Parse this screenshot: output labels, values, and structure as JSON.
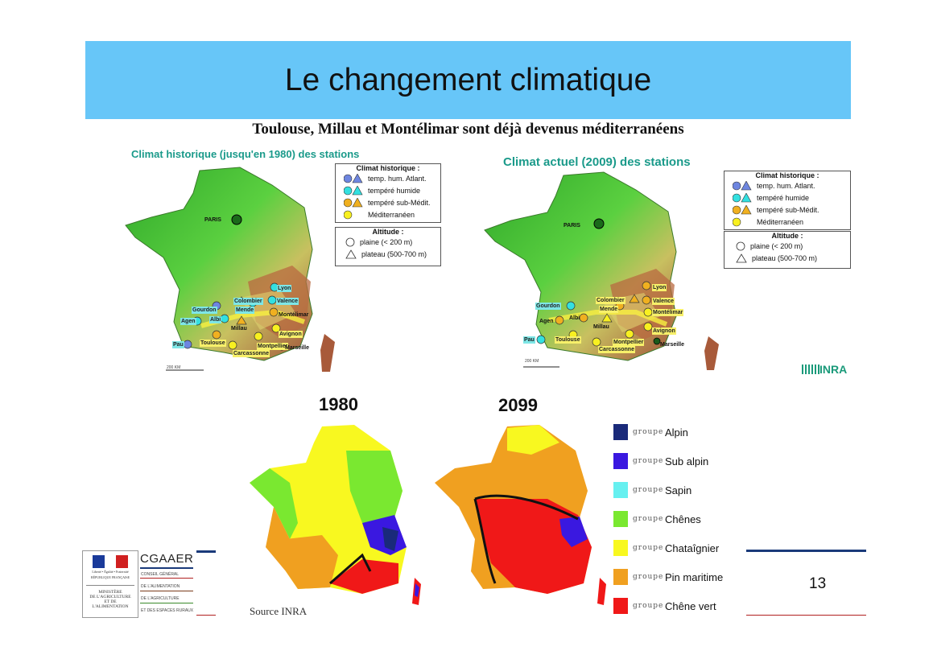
{
  "slide": {
    "title": "Le changement climatique",
    "subtitle": "Toulouse, Millau et Montélimar sont déjà devenus méditerranéens",
    "page_number": "13",
    "source": "Source INRA",
    "inra_logo": "INRA"
  },
  "map_historic": {
    "heading": "Climat historique (jusqu'en 1980) des stations",
    "scale": "200 km",
    "legend": {
      "climate_title": "Climat historique :",
      "items": [
        {
          "label": "temp. hum. Atlant.",
          "color": "#6e86e0"
        },
        {
          "label": "tempéré humide",
          "color": "#33e0e0"
        },
        {
          "label": "tempéré sub-Médit.",
          "color": "#f0b020"
        },
        {
          "label": "Méditerranéen",
          "color": "#f8f020"
        }
      ],
      "altitude_title": "Altitude :",
      "altitude_items": [
        "plaine (< 200 m)",
        "plateau (500-700 m)"
      ]
    },
    "towns": {
      "paris": "PARIS",
      "lyon": "Lyon",
      "colombier": "Colombier",
      "valence": "Valence",
      "mende": "Mende",
      "montelimar": "Montélimar",
      "gourdon": "Gourdon",
      "agen": "Agen",
      "albi": "Albi",
      "millau": "Millau",
      "avignon": "Avignon",
      "pau": "Pau",
      "toulouse": "Toulouse",
      "montpellier": "Montpellier",
      "carcassonne": "Carcassonne",
      "marseille": "Marseille"
    }
  },
  "map_current": {
    "heading": "Climat actuel (2009) des stations",
    "scale": "200 km",
    "legend": {
      "climate_title": "Climat historique :",
      "items": [
        {
          "label": "temp. hum. Atlant.",
          "color": "#6e86e0"
        },
        {
          "label": "tempéré humide",
          "color": "#33e0e0"
        },
        {
          "label": "tempéré sub-Médit.",
          "color": "#f0b020"
        },
        {
          "label": "Méditerranéen",
          "color": "#f8f020"
        }
      ],
      "altitude_title": "Altitude :",
      "altitude_items": [
        "plaine (< 200 m)",
        "plateau (500-700 m)"
      ]
    },
    "towns": {
      "paris": "PARIS",
      "lyon": "Lyon",
      "colombier": "Colombier",
      "valence": "Valence",
      "mende": "Mende",
      "montelimar": "Montélimar",
      "gourdon": "Gourdon",
      "agen": "Agen",
      "albi": "Albi",
      "millau": "Millau",
      "avignon": "Avignon",
      "pau": "Pau",
      "toulouse": "Toulouse",
      "montpellier": "Montpellier",
      "carcassonne": "Carcassonne",
      "marseille": "Marseille"
    }
  },
  "vegetation": {
    "year_left": "1980",
    "year_right": "2099",
    "group_word": "groupe",
    "items": [
      {
        "name": "Alpin",
        "color": "#1a2a7a"
      },
      {
        "name": "Sub alpin",
        "color": "#3a18e0"
      },
      {
        "name": "Sapin",
        "color": "#66f0f0"
      },
      {
        "name": "Chênes",
        "color": "#7ae830"
      },
      {
        "name": "Chataîgnier",
        "color": "#f8f820"
      },
      {
        "name": "Pin maritime",
        "color": "#f0a020"
      },
      {
        "name": "Chêne vert",
        "color": "#f01818"
      }
    ]
  },
  "footer": {
    "cgaaer": "CGAAER",
    "cgaaer_lines": [
      "Conseil général",
      "de l'alimentation",
      "de l'agriculture",
      "et des espaces ruraux"
    ],
    "ministry_lines": [
      "MINISTÈRE",
      "DE L'AGRICULTURE",
      "ET DE",
      "L'ALIMENTATION"
    ],
    "republic_motto": "Liberté • Égalité • Fraternité",
    "republic": "RÉPUBLIQUE FRANÇAISE"
  }
}
